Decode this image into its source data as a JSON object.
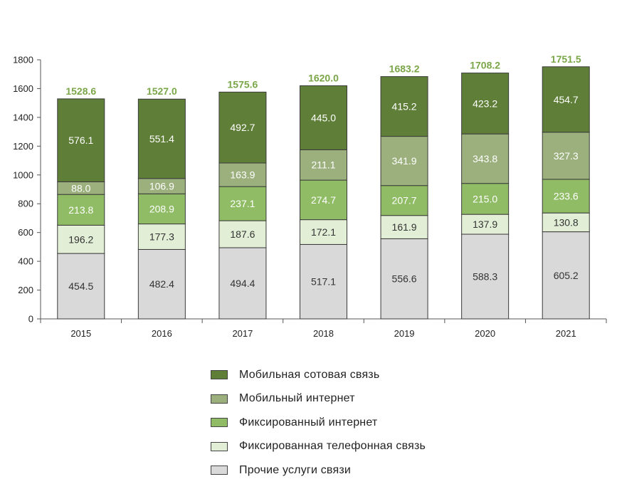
{
  "chart_data": {
    "type": "bar",
    "stacked": true,
    "categories": [
      "2015",
      "2016",
      "2017",
      "2018",
      "2019",
      "2020",
      "2021"
    ],
    "series": [
      {
        "name": "Прочие услуги связи",
        "color": "#d9d9d9",
        "label_color": "#333333",
        "values": [
          454.5,
          482.4,
          494.4,
          517.1,
          556.6,
          588.3,
          605.2
        ]
      },
      {
        "name": "Фиксированная телефонная связь",
        "color": "#e2efd6",
        "label_color": "#333333",
        "values": [
          196.2,
          177.3,
          187.6,
          172.1,
          161.9,
          137.9,
          130.8
        ]
      },
      {
        "name": "Фиксированный интернет",
        "color": "#8fbc64",
        "label_color": "#ffffff",
        "values": [
          213.8,
          208.9,
          237.1,
          274.7,
          207.7,
          215.0,
          233.6
        ]
      },
      {
        "name": "Мобильный интернет",
        "color": "#9bb07c",
        "label_color": "#ffffff",
        "values": [
          88.0,
          106.9,
          163.9,
          211.1,
          341.9,
          343.8,
          327.3
        ]
      },
      {
        "name": "Мобильная сотовая связь",
        "color": "#5f7f38",
        "label_color": "#ffffff",
        "values": [
          576.1,
          551.4,
          492.7,
          445.0,
          415.2,
          423.2,
          454.7
        ]
      }
    ],
    "totals": [
      "1528.6",
      "1527.0",
      "1575.6",
      "1620.0",
      "1683.2",
      "1708.2",
      "1751.5"
    ],
    "total_color": "#7aa648",
    "ylim": [
      0,
      1800
    ],
    "yticks": [
      0,
      200,
      400,
      600,
      800,
      1000,
      1200,
      1400,
      1600,
      1800
    ],
    "grid": false,
    "legend_position": "bottom"
  },
  "legend": {
    "items": [
      {
        "label": "Мобильная сотовая связь",
        "color": "#5f7f38"
      },
      {
        "label": "Мобильный интернет",
        "color": "#9bb07c"
      },
      {
        "label": "Фиксированный интернет",
        "color": "#8fbc64"
      },
      {
        "label": "Фиксированная телефонная связь",
        "color": "#e2efd6"
      },
      {
        "label": "Прочие услуги связи",
        "color": "#d9d9d9"
      }
    ]
  }
}
